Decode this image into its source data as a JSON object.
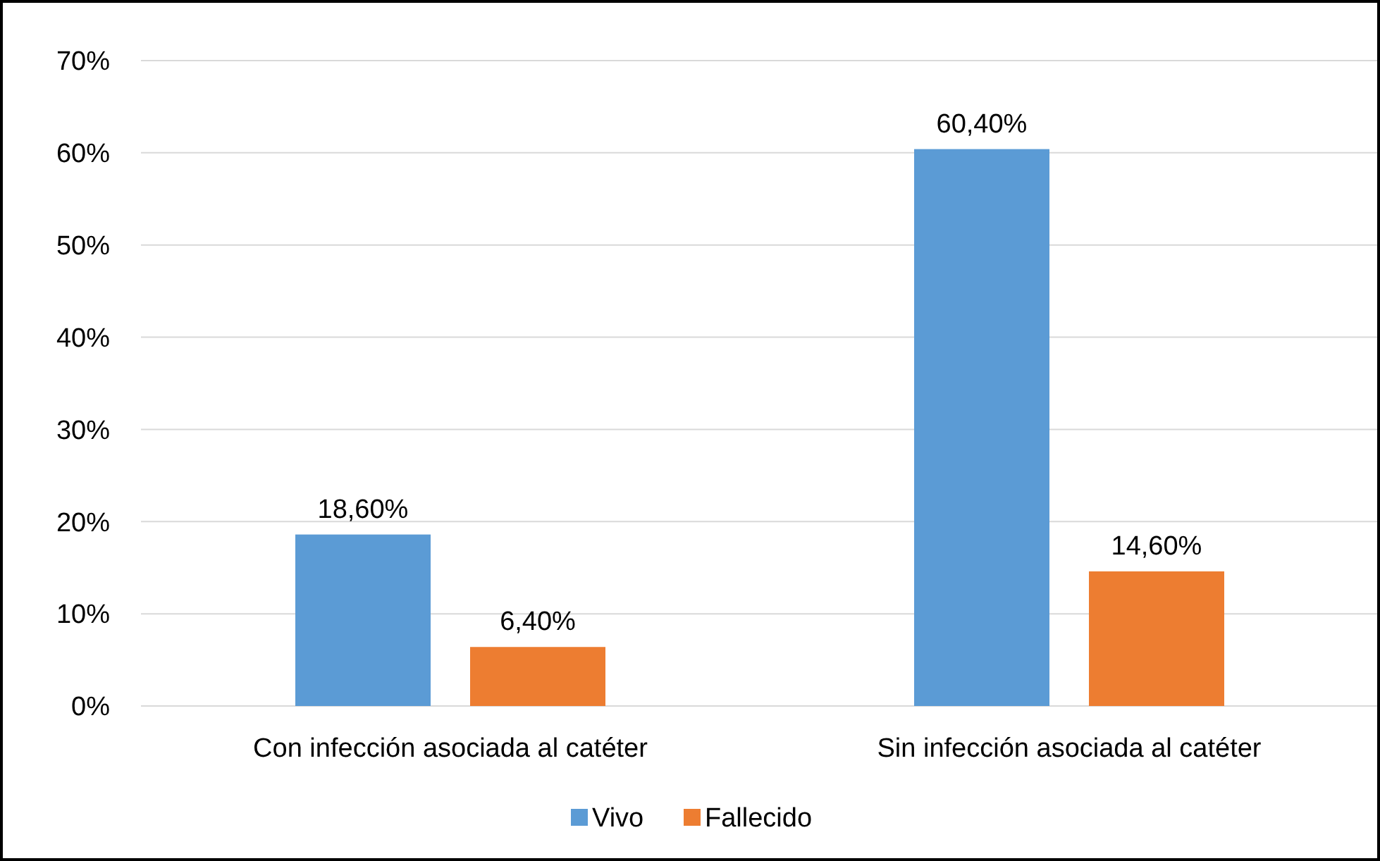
{
  "chart_data": {
    "type": "bar",
    "categories": [
      "Con infección asociada al catéter",
      "Sin infección asociada al catéter"
    ],
    "series": [
      {
        "name": "Vivo",
        "color": "#5b9bd5",
        "values": [
          18.6,
          60.4
        ],
        "value_labels": [
          "18,60%",
          "60,40%"
        ]
      },
      {
        "name": "Fallecido",
        "color": "#ed7d31",
        "values": [
          6.4,
          14.6
        ],
        "value_labels": [
          "6,40%",
          "14,60%"
        ]
      }
    ],
    "ylim": [
      0,
      70
    ],
    "yticks": [
      {
        "value": 0,
        "label": "0%"
      },
      {
        "value": 10,
        "label": "10%"
      },
      {
        "value": 20,
        "label": "20%"
      },
      {
        "value": 30,
        "label": "30%"
      },
      {
        "value": 40,
        "label": "40%"
      },
      {
        "value": 50,
        "label": "50%"
      },
      {
        "value": 60,
        "label": "60%"
      },
      {
        "value": 70,
        "label": "70%"
      }
    ],
    "grid": "y",
    "legend": "bottom"
  }
}
